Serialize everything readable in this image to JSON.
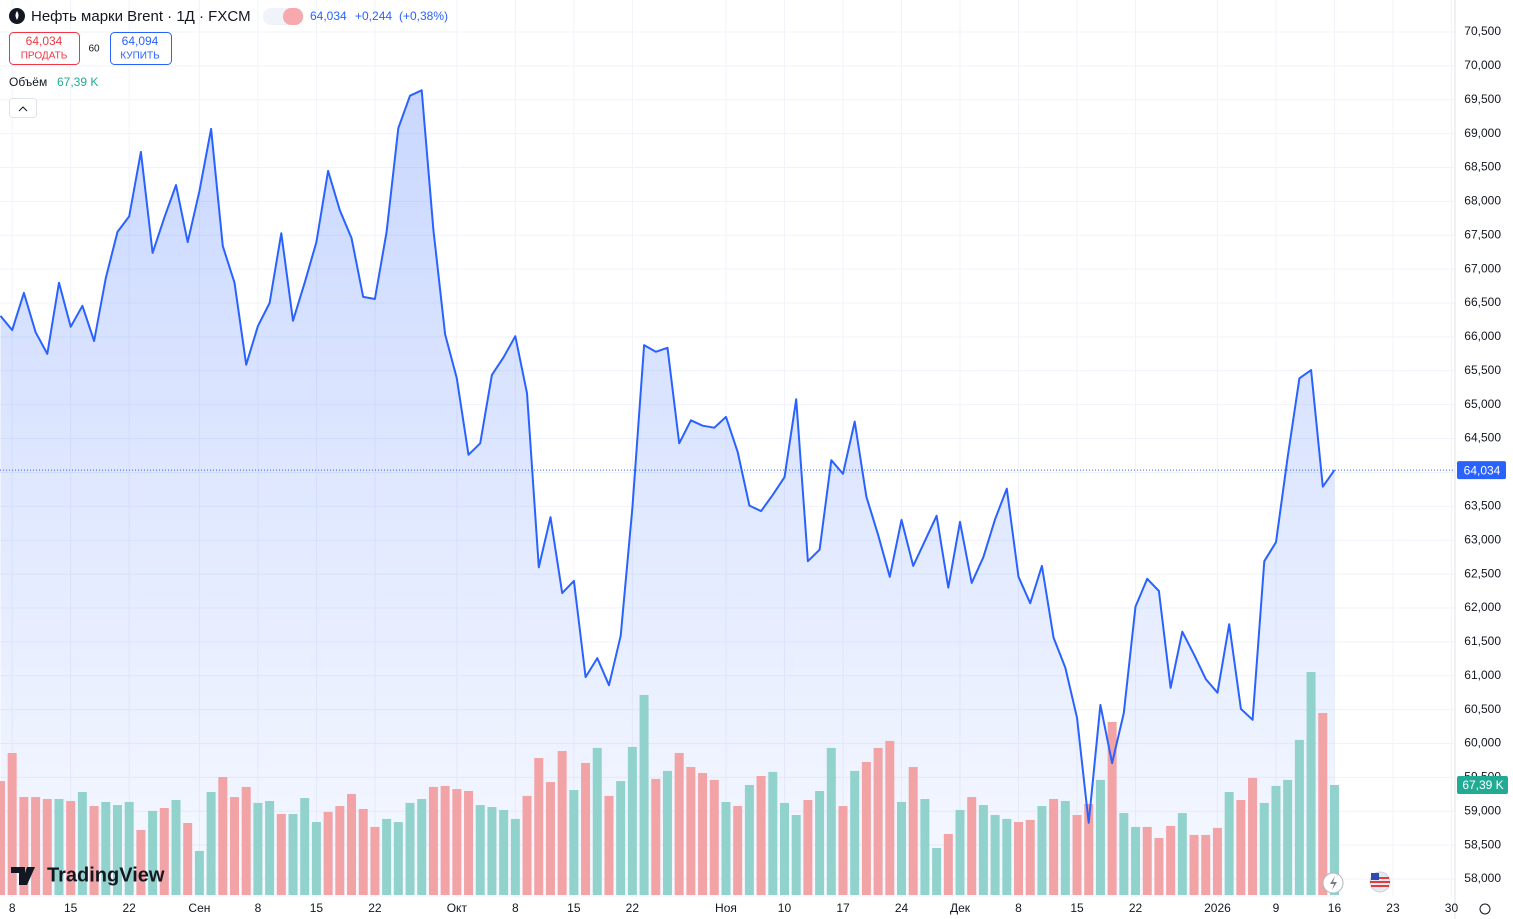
{
  "header": {
    "title": "Нефть марки Brent · 1Д · FXCM",
    "price": "64,034",
    "change": "+0,244",
    "change_pct": "(+0,38%)",
    "sell_price": "64,034",
    "sell_label": "ПРОДАТЬ",
    "spread": "60",
    "buy_price": "64,094",
    "buy_label": "КУПИТЬ",
    "volume_label": "Объём",
    "volume_value": "67,39 K",
    "logo": "TradingView"
  },
  "chart_data": {
    "type": "line",
    "color": "#2962ff",
    "grid": true,
    "values": [
      66310,
      66100,
      66650,
      66070,
      65750,
      66800,
      66150,
      66460,
      65940,
      66870,
      67550,
      67780,
      68730,
      67240,
      67760,
      68240,
      67400,
      68150,
      69070,
      67340,
      66800,
      65590,
      66160,
      66500,
      67530,
      66240,
      66800,
      67400,
      68450,
      67870,
      67460,
      66590,
      66560,
      67550,
      69080,
      69560,
      69640,
      67580,
      66040,
      65390,
      64260,
      64430,
      65440,
      65700,
      66010,
      65170,
      62600,
      63340,
      62220,
      62400,
      60980,
      61260,
      60860,
      61590,
      63480,
      65880,
      65780,
      65840,
      64430,
      64770,
      64690,
      64660,
      64820,
      64300,
      63510,
      63430,
      63670,
      63930,
      65080,
      62690,
      62860,
      64180,
      63980,
      64750,
      63640,
      63080,
      62460,
      63300,
      62620,
      62990,
      63360,
      62300,
      63270,
      62370,
      62750,
      63310,
      63760,
      62460,
      62070,
      62620,
      61560,
      61120,
      60380,
      58830,
      60570,
      59710,
      60450,
      62020,
      62430,
      62250,
      60820,
      61650,
      61310,
      60950,
      60750,
      61760,
      60510,
      60350,
      62690,
      62970,
      64230,
      65390,
      65510,
      63790,
      64034
    ],
    "last_price": {
      "value": 64034,
      "label": "64,034"
    },
    "xlim": [
      -0.04,
      124.3
    ],
    "xticks": [
      {
        "value": 1,
        "label": "8"
      },
      {
        "value": 6,
        "label": "15"
      },
      {
        "value": 11,
        "label": "22"
      },
      {
        "value": 17,
        "label": "Сен"
      },
      {
        "value": 22,
        "label": "8"
      },
      {
        "value": 27,
        "label": "15"
      },
      {
        "value": 32,
        "label": "22"
      },
      {
        "value": 39,
        "label": "Окт"
      },
      {
        "value": 44,
        "label": "8"
      },
      {
        "value": 49,
        "label": "15"
      },
      {
        "value": 54,
        "label": "22"
      },
      {
        "value": 62,
        "label": "Ноя"
      },
      {
        "value": 67,
        "label": "10"
      },
      {
        "value": 72,
        "label": "17"
      },
      {
        "value": 77,
        "label": "24"
      },
      {
        "value": 82,
        "label": "Дек"
      },
      {
        "value": 87,
        "label": "8"
      },
      {
        "value": 92,
        "label": "15"
      },
      {
        "value": 97,
        "label": "22"
      },
      {
        "value": 104,
        "label": "2026"
      },
      {
        "value": 109,
        "label": "9"
      },
      {
        "value": 114,
        "label": "16"
      },
      {
        "value": 119,
        "label": "23"
      },
      {
        "value": 124,
        "label": "30"
      }
    ],
    "ylim": [
      58000,
      70500
    ],
    "yticks": [
      {
        "value": 58000,
        "label": "58,000"
      },
      {
        "value": 58500,
        "label": "58,500"
      },
      {
        "value": 59000,
        "label": "59,000"
      },
      {
        "value": 59500,
        "label": "59,500"
      },
      {
        "value": 60000,
        "label": "60,000"
      },
      {
        "value": 60500,
        "label": "60,500"
      },
      {
        "value": 61000,
        "label": "61,000"
      },
      {
        "value": 61500,
        "label": "61,500"
      },
      {
        "value": 62000,
        "label": "62,000"
      },
      {
        "value": 62500,
        "label": "62,500"
      },
      {
        "value": 63000,
        "label": "63,000"
      },
      {
        "value": 63500,
        "label": "63,500"
      },
      {
        "value": 64000,
        "label": "64,000"
      },
      {
        "value": 64500,
        "label": "64,500"
      },
      {
        "value": 65000,
        "label": "65,000"
      },
      {
        "value": 65500,
        "label": "65,500"
      },
      {
        "value": 66000,
        "label": "66,000"
      },
      {
        "value": 66500,
        "label": "66,500"
      },
      {
        "value": 67000,
        "label": "67,000"
      },
      {
        "value": 67500,
        "label": "67,500"
      },
      {
        "value": 68000,
        "label": "68,000"
      },
      {
        "value": 68500,
        "label": "68,500"
      },
      {
        "value": 69000,
        "label": "69,000"
      },
      {
        "value": 69500,
        "label": "69,500"
      },
      {
        "value": 70000,
        "label": "70,000"
      },
      {
        "value": 70500,
        "label": "70,500"
      }
    ],
    "volume": {
      "values": [
        69.8,
        87.0,
        60.0,
        60.0,
        58.8,
        58.8,
        57.6,
        63.1,
        54.5,
        57.0,
        55.1,
        57.0,
        39.8,
        51.5,
        53.3,
        58.2,
        44.1,
        27.0,
        63.1,
        72.3,
        60.0,
        66.2,
        56.4,
        57.6,
        49.6,
        49.6,
        59.4,
        44.7,
        50.9,
        54.5,
        61.9,
        52.7,
        41.7,
        46.6,
        44.7,
        56.4,
        58.8,
        66.2,
        66.8,
        64.9,
        63.7,
        55.1,
        53.9,
        52.1,
        46.6,
        60.7,
        83.9,
        69.2,
        88.2,
        64.3,
        80.9,
        90.1,
        60.7,
        69.8,
        90.7,
        122.5,
        71.1,
        76.0,
        87.0,
        78.4,
        74.7,
        70.5,
        57.0,
        54.5,
        67.4,
        72.9,
        75.4,
        56.4,
        49.0,
        58.2,
        63.7,
        90.1,
        54.5,
        76.0,
        81.5,
        90.1,
        94.4,
        57.0,
        78.4,
        58.8,
        28.8,
        37.4,
        52.1,
        60.0,
        55.1,
        49.0,
        46.6,
        44.7,
        46.0,
        54.5,
        58.8,
        57.6,
        49.0,
        55.8,
        70.5,
        106.0,
        50.2,
        41.7,
        41.7,
        34.9,
        42.3,
        50.2,
        36.8,
        36.8,
        41.1,
        63.1,
        58.2,
        71.7,
        56.4,
        66.8,
        70.5,
        95.0,
        136.6,
        111.5,
        67.39
      ],
      "colors": [
        "#f2a3a6",
        "#f2a3a6",
        "#f2a3a6",
        "#f2a3a6",
        "#f2a3a6",
        "#92d2cc",
        "#f2a3a6",
        "#92d2cc",
        "#f2a3a6",
        "#92d2cc",
        "#92d2cc",
        "#92d2cc",
        "#f2a3a6",
        "#92d2cc",
        "#f2a3a6",
        "#92d2cc",
        "#f2a3a6",
        "#92d2cc",
        "#92d2cc",
        "#f2a3a6",
        "#f2a3a6",
        "#f2a3a6",
        "#92d2cc",
        "#92d2cc",
        "#f2a3a6",
        "#92d2cc",
        "#92d2cc",
        "#92d2cc",
        "#f2a3a6",
        "#f2a3a6",
        "#f2a3a6",
        "#f2a3a6",
        "#f2a3a6",
        "#92d2cc",
        "#92d2cc",
        "#92d2cc",
        "#92d2cc",
        "#f2a3a6",
        "#f2a3a6",
        "#f2a3a6",
        "#f2a3a6",
        "#92d2cc",
        "#92d2cc",
        "#92d2cc",
        "#92d2cc",
        "#f2a3a6",
        "#f2a3a6",
        "#f2a3a6",
        "#f2a3a6",
        "#92d2cc",
        "#f2a3a6",
        "#92d2cc",
        "#f2a3a6",
        "#92d2cc",
        "#92d2cc",
        "#92d2cc",
        "#f2a3a6",
        "#92d2cc",
        "#f2a3a6",
        "#f2a3a6",
        "#f2a3a6",
        "#f2a3a6",
        "#92d2cc",
        "#f2a3a6",
        "#92d2cc",
        "#f2a3a6",
        "#92d2cc",
        "#92d2cc",
        "#92d2cc",
        "#f2a3a6",
        "#92d2cc",
        "#92d2cc",
        "#f2a3a6",
        "#92d2cc",
        "#f2a3a6",
        "#f2a3a6",
        "#f2a3a6",
        "#92d2cc",
        "#f2a3a6",
        "#92d2cc",
        "#92d2cc",
        "#f2a3a6",
        "#92d2cc",
        "#f2a3a6",
        "#92d2cc",
        "#92d2cc",
        "#92d2cc",
        "#f2a3a6",
        "#f2a3a6",
        "#92d2cc",
        "#f2a3a6",
        "#92d2cc",
        "#f2a3a6",
        "#f2a3a6",
        "#92d2cc",
        "#f2a3a6",
        "#92d2cc",
        "#92d2cc",
        "#f2a3a6",
        "#f2a3a6",
        "#f2a3a6",
        "#92d2cc",
        "#f2a3a6",
        "#f2a3a6",
        "#f2a3a6",
        "#92d2cc",
        "#f2a3a6",
        "#f2a3a6",
        "#92d2cc",
        "#92d2cc",
        "#92d2cc",
        "#92d2cc",
        "#92d2cc",
        "#f2a3a6",
        "#92d2cc"
      ],
      "last_label": {
        "value": 67.39,
        "label": "67,39 K"
      }
    }
  }
}
